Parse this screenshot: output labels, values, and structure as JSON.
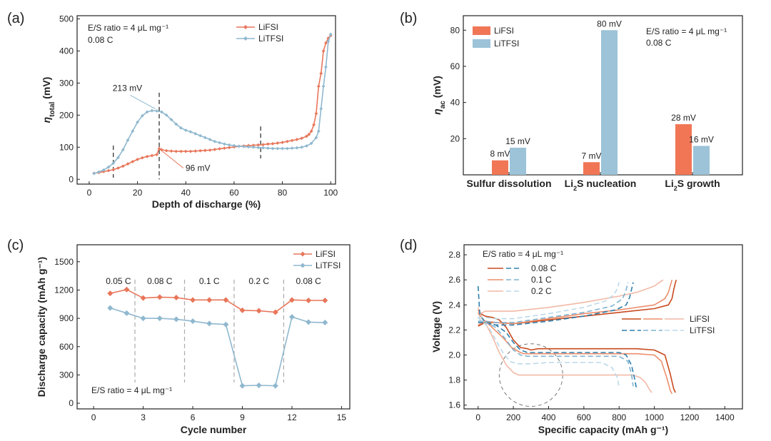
{
  "colors": {
    "lifsi": "#e8765a",
    "litfsi": "#8fb8cf",
    "lifsi_bar": "#f07656",
    "litfsi_bar": "#9cc3d8",
    "d_dark": "#c84a1e",
    "d_mid": "#ec8f6c",
    "d_light": "#f2b9a6",
    "d_blue_dark": "#2f7fae",
    "d_blue_mid": "#7fb3d1",
    "d_blue_light": "#bcd9e8"
  },
  "chart_data": [
    {
      "panel": "(a)",
      "type": "line",
      "xlabel": "Depth of discharge (%)",
      "ylabel_main": "η",
      "ylabel_sub": "total",
      "ylabel_unit": " (mV)",
      "xlim": [
        -5,
        102
      ],
      "ylim": [
        -15,
        510
      ],
      "xticks": [
        0,
        20,
        40,
        60,
        80,
        100
      ],
      "yticks": [
        0,
        100,
        200,
        300,
        400,
        500
      ],
      "notes": [
        "E/S ratio = 4 μL mg⁻¹",
        "0.08 C"
      ],
      "series": [
        {
          "name": "LiFSI",
          "color": "lifsi",
          "x": [
            2,
            4,
            6,
            8,
            10,
            12,
            14,
            16,
            18,
            20,
            22,
            24,
            26,
            28,
            29,
            30,
            32,
            34,
            36,
            38,
            40,
            42,
            44,
            46,
            48,
            50,
            52,
            54,
            56,
            58,
            60,
            62,
            64,
            66,
            68,
            70,
            72,
            74,
            76,
            78,
            80,
            82,
            84,
            86,
            88,
            90,
            91,
            92,
            93,
            94,
            95,
            96,
            97,
            98,
            99,
            100
          ],
          "y": [
            19,
            21,
            24,
            27,
            30,
            35,
            41,
            48,
            55,
            62,
            67,
            71,
            74,
            77,
            96,
            92,
            89,
            88,
            87,
            87,
            87,
            87,
            88,
            89,
            90,
            91,
            93,
            95,
            97,
            99,
            101,
            103,
            104,
            105,
            106,
            107,
            108,
            110,
            111,
            113,
            115,
            118,
            121,
            124,
            128,
            134,
            140,
            150,
            170,
            205,
            290,
            330,
            400,
            425,
            440,
            448
          ]
        },
        {
          "name": "LiTFSI",
          "color": "litfsi",
          "x": [
            2,
            4,
            6,
            8,
            10,
            12,
            14,
            16,
            18,
            20,
            22,
            24,
            26,
            28,
            30,
            32,
            34,
            36,
            38,
            40,
            42,
            44,
            46,
            48,
            50,
            52,
            54,
            56,
            58,
            60,
            62,
            64,
            66,
            68,
            70,
            72,
            74,
            76,
            78,
            80,
            82,
            84,
            86,
            88,
            90,
            92,
            94,
            95,
            96,
            97,
            98,
            99,
            100
          ],
          "y": [
            18,
            23,
            29,
            38,
            50,
            68,
            92,
            122,
            150,
            178,
            198,
            210,
            214,
            213,
            210,
            200,
            186,
            172,
            160,
            153,
            148,
            142,
            136,
            130,
            124,
            118,
            114,
            110,
            107,
            105,
            103,
            102,
            101,
            100,
            99,
            98,
            97,
            96,
            96,
            96,
            96,
            97,
            98,
            100,
            104,
            112,
            130,
            150,
            220,
            290,
            350,
            430,
            452
          ]
        }
      ],
      "annotations": [
        {
          "text": "213 mV",
          "x": 28,
          "y": 213,
          "color": "litfsi"
        },
        {
          "text": "96 mV",
          "x": 29,
          "y": 96,
          "color": "lifsi"
        }
      ],
      "dashed_x": [
        10,
        29,
        71
      ]
    },
    {
      "panel": "(b)",
      "type": "bar",
      "ylabel_main": "η",
      "ylabel_sub": "ac",
      "ylabel_unit": " (mV)",
      "ylim": [
        0,
        88
      ],
      "yticks": [
        20,
        40,
        60,
        80
      ],
      "categories": [
        {
          "pre": "Sulfur dissolution",
          "sub": "",
          "post": ""
        },
        {
          "pre": "Li",
          "sub": "2",
          "post": "S nucleation"
        },
        {
          "pre": "Li",
          "sub": "2",
          "post": "S growth"
        }
      ],
      "series": [
        {
          "name": "LiFSI",
          "color": "lifsi_bar",
          "values": [
            8,
            7,
            28
          ]
        },
        {
          "name": "LiTFSI",
          "color": "litfsi_bar",
          "values": [
            15,
            80,
            16
          ]
        }
      ],
      "value_labels": [
        [
          "8 mV",
          "7 mV",
          "28 mV"
        ],
        [
          "15 mV",
          "80 mV",
          "16 mV"
        ]
      ],
      "notes": [
        "E/S ratio = 4 μL mg⁻¹",
        "0.08 C"
      ]
    },
    {
      "panel": "(c)",
      "type": "line",
      "xlabel": "Cycle number",
      "ylabel": "Discharge capacity (mAh g⁻¹)",
      "xlim": [
        -1,
        15.5
      ],
      "ylim": [
        -60,
        1680
      ],
      "xticks": [
        0,
        3,
        6,
        9,
        12,
        15
      ],
      "yticks": [
        0,
        300,
        600,
        900,
        1200,
        1500
      ],
      "series": [
        {
          "name": "LiFSI",
          "color": "lifsi",
          "x": [
            1,
            2,
            3,
            4,
            5,
            6,
            7,
            8,
            9,
            10,
            11,
            12,
            13,
            14
          ],
          "y": [
            1165,
            1205,
            1115,
            1125,
            1120,
            1095,
            1095,
            1095,
            985,
            980,
            965,
            1095,
            1090,
            1090
          ]
        },
        {
          "name": "LiTFSI",
          "color": "litfsi",
          "x": [
            1,
            2,
            3,
            4,
            5,
            6,
            7,
            8,
            9,
            10,
            11,
            12,
            13,
            14
          ],
          "y": [
            1010,
            955,
            900,
            900,
            890,
            870,
            845,
            835,
            185,
            190,
            185,
            915,
            860,
            855
          ]
        }
      ],
      "rate_labels": [
        "0.05 C",
        "0.08 C",
        "0.1 C",
        "0.2 C",
        "0.08 C"
      ],
      "rate_label_x": [
        1.5,
        4,
        7,
        10,
        13
      ],
      "dashed_x": [
        2.5,
        5.5,
        8.5,
        11.5
      ],
      "notes": [
        "E/S ratio = 4 μL mg⁻¹"
      ]
    },
    {
      "panel": "(d)",
      "type": "line",
      "xlabel": "Specific capacity (mAh g⁻¹)",
      "ylabel": "Voltage (V)",
      "xlim": [
        -80,
        1500
      ],
      "ylim": [
        1.57,
        2.88
      ],
      "xticks": [
        0,
        200,
        400,
        600,
        800,
        1000,
        1200,
        1400
      ],
      "yticks": [
        1.6,
        1.8,
        2.0,
        2.2,
        2.4,
        2.6,
        2.8
      ],
      "rates": [
        "0.08 C",
        "0.1 C",
        "0.2 C"
      ],
      "legend_electrolytes": [
        "LiFSI",
        "LiTFSI"
      ],
      "notes": [
        "E/S ratio = 4 μL mg⁻¹"
      ],
      "circle": {
        "x": 300,
        "y": 1.84,
        "rx_data": 180,
        "ry_data": 0.25
      },
      "series": [
        {
          "name": "LiFSI 0.08 C discharge",
          "color": "d_dark",
          "dash": false,
          "x": [
            0,
            15,
            40,
            80,
            120,
            160,
            200,
            240,
            280,
            300,
            340,
            400,
            600,
            800,
            900,
            1000,
            1060,
            1090,
            1110,
            1120
          ],
          "y": [
            2.36,
            2.33,
            2.31,
            2.3,
            2.28,
            2.22,
            2.12,
            2.06,
            2.05,
            2.04,
            2.05,
            2.05,
            2.05,
            2.05,
            2.05,
            2.04,
            2.0,
            1.85,
            1.73,
            1.7
          ]
        },
        {
          "name": "LiFSI 0.08 C charge",
          "color": "d_dark",
          "dash": false,
          "x": [
            0,
            40,
            100,
            200,
            400,
            600,
            800,
            1000,
            1080,
            1100,
            1110,
            1120,
            1125
          ],
          "y": [
            2.23,
            2.26,
            2.26,
            2.25,
            2.28,
            2.31,
            2.34,
            2.37,
            2.4,
            2.45,
            2.52,
            2.58,
            2.6
          ]
        },
        {
          "name": "LiFSI 0.1 C discharge",
          "color": "d_mid",
          "dash": false,
          "x": [
            0,
            15,
            40,
            80,
            140,
            190,
            240,
            260,
            300,
            400,
            600,
            800,
            900,
            1000,
            1040,
            1070,
            1090,
            1100
          ],
          "y": [
            2.34,
            2.3,
            2.27,
            2.22,
            2.14,
            2.06,
            2.02,
            2.01,
            2.01,
            2.01,
            2.01,
            2.01,
            2.01,
            2.0,
            1.95,
            1.82,
            1.72,
            1.69
          ]
        },
        {
          "name": "LiFSI 0.1 C charge",
          "color": "d_mid",
          "dash": false,
          "x": [
            0,
            40,
            100,
            200,
            400,
            600,
            800,
            1000,
            1060,
            1080,
            1090,
            1100
          ],
          "y": [
            2.24,
            2.27,
            2.26,
            2.25,
            2.29,
            2.33,
            2.36,
            2.4,
            2.45,
            2.5,
            2.55,
            2.6
          ]
        },
        {
          "name": "LiFSI 0.2 C discharge",
          "color": "d_light",
          "dash": false,
          "x": [
            0,
            15,
            40,
            80,
            120,
            160,
            200,
            230,
            260,
            300,
            400,
            600,
            800,
            880,
            920,
            950,
            970,
            985
          ],
          "y": [
            2.38,
            2.32,
            2.26,
            2.15,
            2.02,
            1.92,
            1.86,
            1.84,
            1.84,
            1.84,
            1.84,
            1.84,
            1.84,
            1.84,
            1.82,
            1.78,
            1.73,
            1.7
          ]
        },
        {
          "name": "LiFSI 0.2 C charge",
          "color": "d_light",
          "dash": false,
          "x": [
            0,
            40,
            100,
            200,
            400,
            600,
            800,
            900,
            960,
            1000,
            1030,
            1050
          ],
          "y": [
            2.32,
            2.35,
            2.35,
            2.35,
            2.38,
            2.42,
            2.47,
            2.5,
            2.53,
            2.55,
            2.58,
            2.6
          ]
        },
        {
          "name": "LiTFSI 0.08 C discharge",
          "color": "d_blue_dark",
          "dash": true,
          "x": [
            0,
            10,
            30,
            60,
            100,
            160,
            200,
            240,
            280,
            320,
            400,
            600,
            800,
            840,
            870,
            890,
            900
          ],
          "y": [
            2.55,
            2.32,
            2.28,
            2.25,
            2.24,
            2.18,
            2.1,
            2.04,
            2.02,
            2.02,
            2.02,
            2.02,
            2.02,
            2.0,
            1.92,
            1.8,
            1.72
          ]
        },
        {
          "name": "LiTFSI 0.08 C charge",
          "color": "d_blue_dark",
          "dash": true,
          "x": [
            0,
            40,
            100,
            200,
            400,
            600,
            780,
            840,
            860,
            870,
            880
          ],
          "y": [
            2.26,
            2.26,
            2.24,
            2.24,
            2.27,
            2.31,
            2.36,
            2.4,
            2.46,
            2.52,
            2.58
          ]
        },
        {
          "name": "LiTFSI 0.1 C discharge",
          "color": "d_blue_mid",
          "dash": true,
          "x": [
            0,
            20,
            60,
            100,
            160,
            200,
            240,
            280,
            320,
            400,
            600,
            800,
            850,
            870,
            880
          ],
          "y": [
            2.3,
            2.27,
            2.25,
            2.22,
            2.12,
            2.04,
            2.0,
            1.99,
            1.99,
            1.99,
            1.99,
            1.99,
            1.95,
            1.85,
            1.75
          ]
        },
        {
          "name": "LiTFSI 0.1 C charge",
          "color": "d_blue_mid",
          "dash": true,
          "x": [
            0,
            40,
            100,
            200,
            400,
            600,
            760,
            820,
            840,
            850
          ],
          "y": [
            2.27,
            2.27,
            2.26,
            2.26,
            2.3,
            2.34,
            2.39,
            2.45,
            2.52,
            2.58
          ]
        },
        {
          "name": "LiTFSI 0.2 C discharge",
          "color": "d_blue_light",
          "dash": true,
          "x": [
            0,
            20,
            60,
            100,
            140,
            180,
            220,
            260,
            300,
            400,
            600,
            700,
            760,
            790,
            800
          ],
          "y": [
            2.3,
            2.27,
            2.22,
            2.12,
            2.02,
            1.95,
            1.93,
            1.93,
            1.93,
            1.94,
            1.94,
            1.94,
            1.9,
            1.82,
            1.75
          ]
        },
        {
          "name": "LiTFSI 0.2 C charge",
          "color": "d_blue_light",
          "dash": true,
          "x": [
            0,
            40,
            100,
            200,
            400,
            600,
            720,
            770,
            790,
            800
          ],
          "y": [
            2.3,
            2.3,
            2.29,
            2.29,
            2.33,
            2.38,
            2.43,
            2.48,
            2.53,
            2.58
          ]
        }
      ]
    }
  ]
}
